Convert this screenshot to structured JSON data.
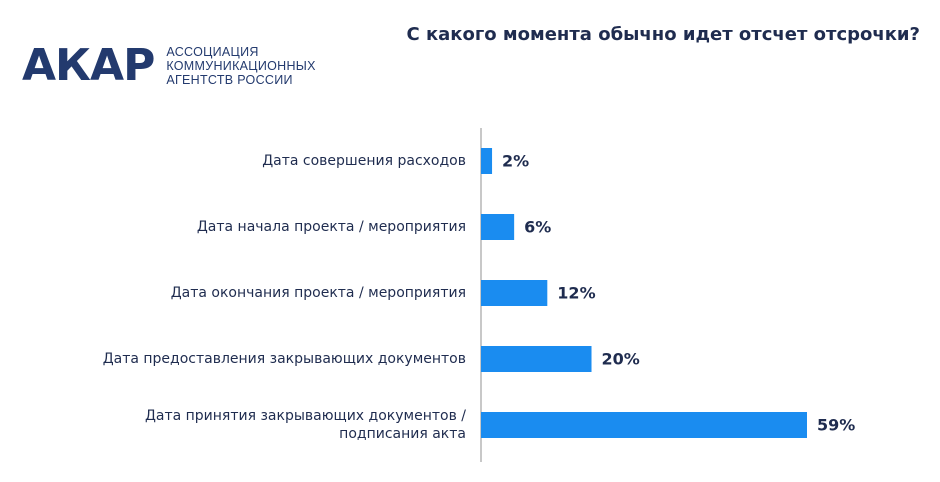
{
  "logo": {
    "mark": "АКАР",
    "text_lines": [
      "АССОЦИАЦИЯ",
      "КОММУНИКАЦИОННЫХ",
      "АГЕНТСТВ РОССИИ"
    ]
  },
  "colors": {
    "bar": "#1a8cf0",
    "text": "#1f2c4f",
    "axis": "#b5b5b5",
    "logo": "#233a6e"
  },
  "chart_data": {
    "type": "bar",
    "orientation": "horizontal",
    "title": "С какого момента обычно идет отсчет отсрочки?",
    "categories": [
      [
        "Дата совершения расходов"
      ],
      [
        "Дата начала проекта / мероприятия"
      ],
      [
        "Дата окончания проекта / мероприятия"
      ],
      [
        "Дата предоставления закрывающих документов"
      ],
      [
        "Дата принятия закрывающих документов /",
        "подписания акта"
      ]
    ],
    "values": [
      2,
      6,
      12,
      20,
      59
    ],
    "value_labels": [
      "2%",
      "6%",
      "12%",
      "20%",
      "59%"
    ],
    "unit": "%",
    "xlim": [
      0,
      59
    ],
    "grid": false,
    "legend": "none"
  }
}
